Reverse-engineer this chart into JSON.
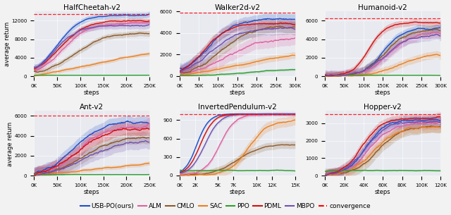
{
  "subplots": [
    {
      "title": "HalfCheetah-v2",
      "xlim": [
        0,
        250000
      ],
      "ylim": [
        -200,
        14000
      ],
      "yticks": [
        0,
        4000,
        8000,
        12000
      ],
      "xticks": [
        0,
        50000,
        100000,
        150000,
        200000,
        250000
      ],
      "xticklabels": [
        "0K",
        "50K",
        "100K",
        "150K",
        "200K",
        "250K"
      ],
      "convergence": 13500,
      "row": 0,
      "col": 0
    },
    {
      "title": "Walker2d-v2",
      "xlim": [
        0,
        300000
      ],
      "ylim": [
        -100,
        6000
      ],
      "yticks": [
        0,
        2000,
        4000,
        6000
      ],
      "xticks": [
        0,
        50000,
        100000,
        150000,
        200000,
        250000,
        300000
      ],
      "xticklabels": [
        "0K",
        "50K",
        "100K",
        "150K",
        "200K",
        "250K",
        "300K"
      ],
      "convergence": 5900,
      "row": 0,
      "col": 1
    },
    {
      "title": "Humanoid-v2",
      "xlim": [
        0,
        300000
      ],
      "ylim": [
        -100,
        7000
      ],
      "yticks": [
        0,
        2000,
        4000,
        6000
      ],
      "xticks": [
        0,
        50000,
        100000,
        150000,
        200000,
        250000,
        300000
      ],
      "xticklabels": [
        "0K",
        "50K",
        "100K",
        "150K",
        "200K",
        "250K",
        "300K"
      ],
      "convergence": 6300,
      "row": 0,
      "col": 2
    },
    {
      "title": "Ant-v2",
      "xlim": [
        0,
        250000
      ],
      "ylim": [
        -100,
        6500
      ],
      "yticks": [
        0,
        2000,
        4000,
        6000
      ],
      "xticks": [
        0,
        50000,
        100000,
        150000,
        200000,
        250000
      ],
      "xticklabels": [
        "0K",
        "50K",
        "100K",
        "150K",
        "200K",
        "250K"
      ],
      "convergence": 6000,
      "row": 1,
      "col": 0
    },
    {
      "title": "InvertedPendulum-v2",
      "xlim": [
        0,
        15000
      ],
      "ylim": [
        -20,
        1050
      ],
      "yticks": [
        0,
        300,
        600,
        900
      ],
      "xticks": [
        0,
        2000,
        5000,
        7000,
        10000,
        12000,
        15000
      ],
      "xticklabels": [
        "0K",
        "2K",
        "5K",
        "7K",
        "10K",
        "12K",
        "15K"
      ],
      "convergence": 1000,
      "row": 1,
      "col": 1
    },
    {
      "title": "Hopper-v2",
      "xlim": [
        0,
        120000
      ],
      "ylim": [
        -50,
        3700
      ],
      "yticks": [
        0,
        1000,
        2000,
        3000
      ],
      "xticks": [
        0,
        20000,
        40000,
        60000,
        80000,
        100000,
        120000
      ],
      "xticklabels": [
        "0K",
        "20K",
        "40K",
        "60K",
        "80K",
        "100K",
        "120K"
      ],
      "convergence": 3500,
      "row": 1,
      "col": 2
    }
  ],
  "algorithms": [
    {
      "name": "USB-PO(ours)",
      "color": "#1f4fc8",
      "lw": 1.5
    },
    {
      "name": "ALM",
      "color": "#e060a0",
      "lw": 1.5
    },
    {
      "name": "CMLO",
      "color": "#8b5a2b",
      "lw": 1.5
    },
    {
      "name": "SAC",
      "color": "#e88020",
      "lw": 1.5
    },
    {
      "name": "PPO",
      "color": "#30a030",
      "lw": 1.5
    },
    {
      "name": "PDML",
      "color": "#d01010",
      "lw": 1.5
    },
    {
      "name": "MBPO",
      "color": "#7050b0",
      "lw": 1.5
    }
  ],
  "bg_color": "#e8eaf0",
  "fig_bg": "#f2f2f2",
  "legend_fontsize": 6.5,
  "axis_fontsize": 6,
  "title_fontsize": 7.5
}
